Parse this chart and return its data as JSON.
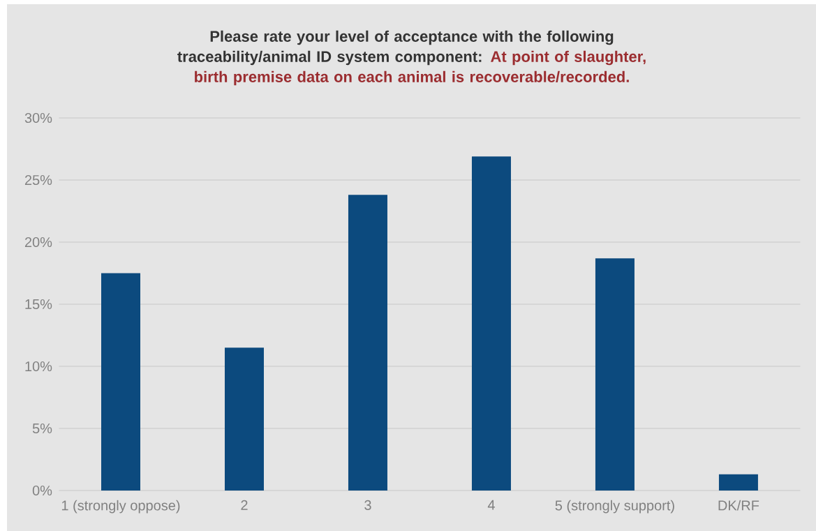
{
  "chart_data": {
    "type": "bar",
    "title": "Please rate your level of acceptance with the following traceability/animal ID system component:",
    "subtitle": "At point of slaughter, birth premise data on each animal is recoverable/recorded.",
    "categories": [
      "1 (strongly oppose)",
      "2",
      "3",
      "4",
      "5 (strongly support)",
      "DK/RF"
    ],
    "values": [
      17.5,
      11.5,
      23.8,
      26.9,
      18.7,
      1.3
    ],
    "color": "#0c4a7e",
    "ylim": [
      0,
      30
    ],
    "yticks": [
      {
        "value": 0,
        "label": "0%"
      },
      {
        "value": 5,
        "label": "5%"
      },
      {
        "value": 10,
        "label": "10%"
      },
      {
        "value": 15,
        "label": "15%"
      },
      {
        "value": 20,
        "label": "20%"
      },
      {
        "value": 25,
        "label": "25%"
      },
      {
        "value": 30,
        "label": "30%"
      }
    ],
    "grid": "y"
  }
}
